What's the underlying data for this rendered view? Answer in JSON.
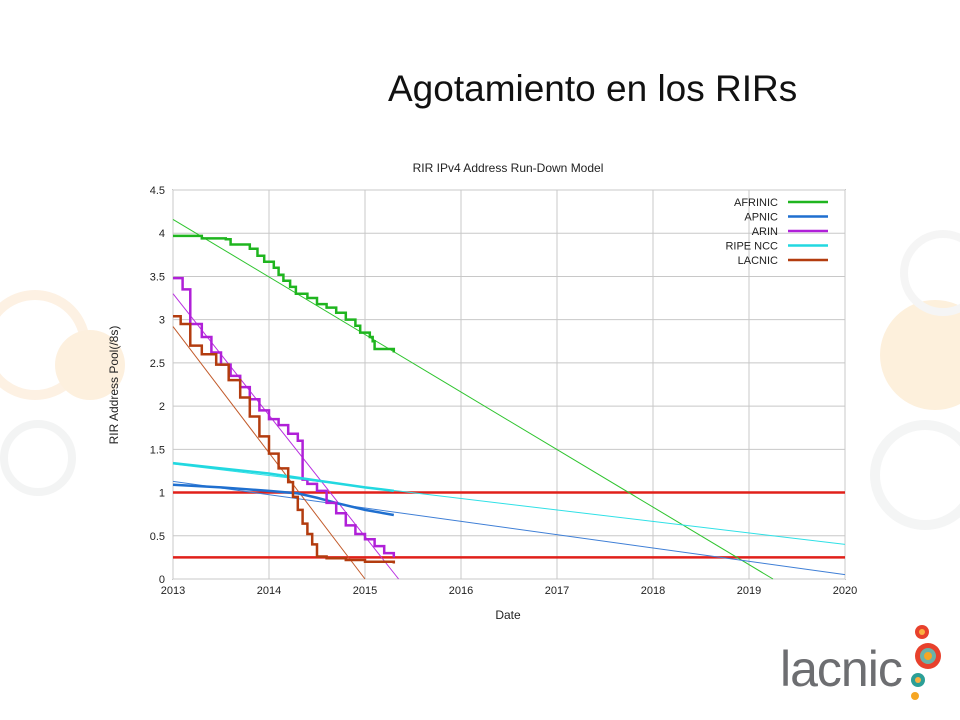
{
  "slide": {
    "title": "Agotamiento en los RIRs"
  },
  "logo": {
    "text": "lacnic"
  },
  "chart_data": {
    "type": "line",
    "title": "RIR IPv4 Address Run-Down Model",
    "xlabel": "Date",
    "ylabel": "RIR Address Pool(/8s)",
    "xlim": [
      2013,
      2020
    ],
    "ylim": [
      0,
      4.5
    ],
    "x_ticks": [
      "2013",
      "2014",
      "2015",
      "2016",
      "2017",
      "2018",
      "2019",
      "2020"
    ],
    "y_ticks": [
      "0",
      "0.5",
      "1",
      "1.5",
      "2",
      "2.5",
      "3",
      "3.5",
      "4",
      "4.5"
    ],
    "legend_position": "top-right",
    "series": [
      {
        "name": "AFRINIC",
        "color": "#1fb51f",
        "step": true,
        "points": [
          [
            2013.0,
            3.97
          ],
          [
            2013.3,
            3.94
          ],
          [
            2013.55,
            3.93
          ],
          [
            2013.6,
            3.87
          ],
          [
            2013.8,
            3.82
          ],
          [
            2013.88,
            3.74
          ],
          [
            2013.95,
            3.67
          ],
          [
            2014.05,
            3.6
          ],
          [
            2014.1,
            3.52
          ],
          [
            2014.15,
            3.45
          ],
          [
            2014.22,
            3.38
          ],
          [
            2014.28,
            3.3
          ],
          [
            2014.4,
            3.25
          ],
          [
            2014.5,
            3.18
          ],
          [
            2014.6,
            3.14
          ],
          [
            2014.7,
            3.08
          ],
          [
            2014.8,
            3.0
          ],
          [
            2014.9,
            2.93
          ],
          [
            2014.95,
            2.85
          ],
          [
            2015.05,
            2.8
          ],
          [
            2015.08,
            2.75
          ],
          [
            2015.1,
            2.66
          ],
          [
            2015.3,
            2.62
          ]
        ]
      },
      {
        "name": "APNIC",
        "color": "#1f6fcf",
        "step": false,
        "points": [
          [
            2013.0,
            1.09
          ],
          [
            2013.5,
            1.06
          ],
          [
            2014.0,
            1.02
          ],
          [
            2014.3,
            0.99
          ],
          [
            2014.5,
            0.94
          ],
          [
            2014.7,
            0.88
          ],
          [
            2015.0,
            0.8
          ],
          [
            2015.3,
            0.74
          ]
        ]
      },
      {
        "name": "ARIN",
        "color": "#b020d8",
        "step": true,
        "points": [
          [
            2013.0,
            3.48
          ],
          [
            2013.1,
            3.35
          ],
          [
            2013.18,
            2.95
          ],
          [
            2013.3,
            2.8
          ],
          [
            2013.4,
            2.62
          ],
          [
            2013.5,
            2.48
          ],
          [
            2013.6,
            2.35
          ],
          [
            2013.7,
            2.22
          ],
          [
            2013.8,
            2.08
          ],
          [
            2013.9,
            1.95
          ],
          [
            2014.0,
            1.85
          ],
          [
            2014.1,
            1.78
          ],
          [
            2014.2,
            1.68
          ],
          [
            2014.3,
            1.6
          ],
          [
            2014.35,
            1.15
          ],
          [
            2014.4,
            1.1
          ],
          [
            2014.5,
            1.02
          ],
          [
            2014.6,
            0.88
          ],
          [
            2014.7,
            0.76
          ],
          [
            2014.8,
            0.62
          ],
          [
            2014.9,
            0.52
          ],
          [
            2015.0,
            0.46
          ],
          [
            2015.1,
            0.38
          ],
          [
            2015.2,
            0.3
          ],
          [
            2015.3,
            0.25
          ]
        ]
      },
      {
        "name": "RIPE NCC",
        "color": "#22d8e0",
        "step": false,
        "points": [
          [
            2013.0,
            1.34
          ],
          [
            2013.5,
            1.28
          ],
          [
            2014.0,
            1.22
          ],
          [
            2014.5,
            1.14
          ],
          [
            2015.0,
            1.06
          ],
          [
            2015.3,
            1.02
          ]
        ]
      },
      {
        "name": "LACNIC",
        "color": "#b33c0f",
        "step": true,
        "points": [
          [
            2013.0,
            3.04
          ],
          [
            2013.08,
            2.95
          ],
          [
            2013.18,
            2.7
          ],
          [
            2013.3,
            2.6
          ],
          [
            2013.45,
            2.48
          ],
          [
            2013.58,
            2.3
          ],
          [
            2013.7,
            2.1
          ],
          [
            2013.8,
            1.88
          ],
          [
            2013.9,
            1.65
          ],
          [
            2014.0,
            1.45
          ],
          [
            2014.1,
            1.28
          ],
          [
            2014.2,
            1.12
          ],
          [
            2014.25,
            0.95
          ],
          [
            2014.3,
            0.8
          ],
          [
            2014.35,
            0.64
          ],
          [
            2014.4,
            0.52
          ],
          [
            2014.45,
            0.4
          ],
          [
            2014.5,
            0.26
          ],
          [
            2014.6,
            0.24
          ],
          [
            2014.8,
            0.22
          ],
          [
            2015.0,
            0.2
          ],
          [
            2015.3,
            0.18
          ]
        ]
      }
    ],
    "trend_lines": [
      {
        "series": "AFRINIC",
        "color": "#2ec42e",
        "from": [
          2013.0,
          4.16
        ],
        "to": [
          2019.25,
          0.0
        ]
      },
      {
        "series": "APNIC",
        "color": "#3f7fd6",
        "from": [
          2013.0,
          1.13
        ],
        "to": [
          2020.0,
          0.05
        ]
      },
      {
        "series": "ARIN",
        "color": "#b930e0",
        "from": [
          2013.0,
          3.3
        ],
        "to": [
          2015.35,
          0.0
        ]
      },
      {
        "series": "RIPE NCC",
        "color": "#2fe0e6",
        "from": [
          2013.0,
          1.33
        ],
        "to": [
          2020.0,
          0.4
        ]
      },
      {
        "series": "LACNIC",
        "color": "#c25a2a",
        "from": [
          2013.0,
          2.92
        ],
        "to": [
          2015.0,
          0.0
        ]
      }
    ],
    "reference_lines": [
      {
        "y": 1.0,
        "color": "#e0201a"
      },
      {
        "y": 0.25,
        "color": "#e0201a"
      }
    ]
  }
}
